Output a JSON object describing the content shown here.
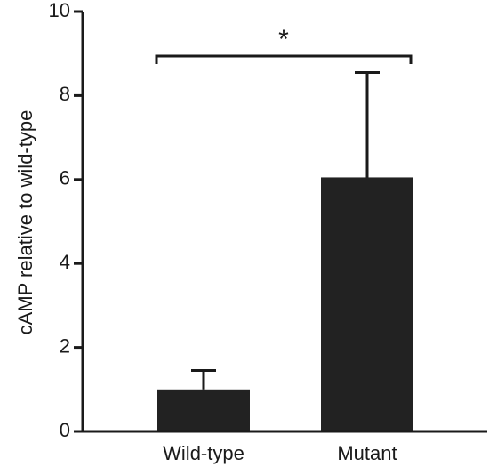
{
  "chart_data": {
    "type": "bar",
    "categories": [
      "Wild-type",
      "Mutant"
    ],
    "values": [
      1.0,
      6.05
    ],
    "error": [
      0.45,
      2.5
    ],
    "ylabel": "cAMP relative to wild-type",
    "xlabel": "",
    "ylim": [
      0,
      10
    ],
    "yticks": [
      "0",
      "2",
      "4",
      "6",
      "8",
      "10"
    ],
    "ytick_values": [
      0,
      2,
      4,
      6,
      8,
      10
    ],
    "bar_color": "#222222",
    "grid": false,
    "legend": "none",
    "significance": {
      "from": "Wild-type",
      "to": "Mutant",
      "label": "*"
    }
  }
}
